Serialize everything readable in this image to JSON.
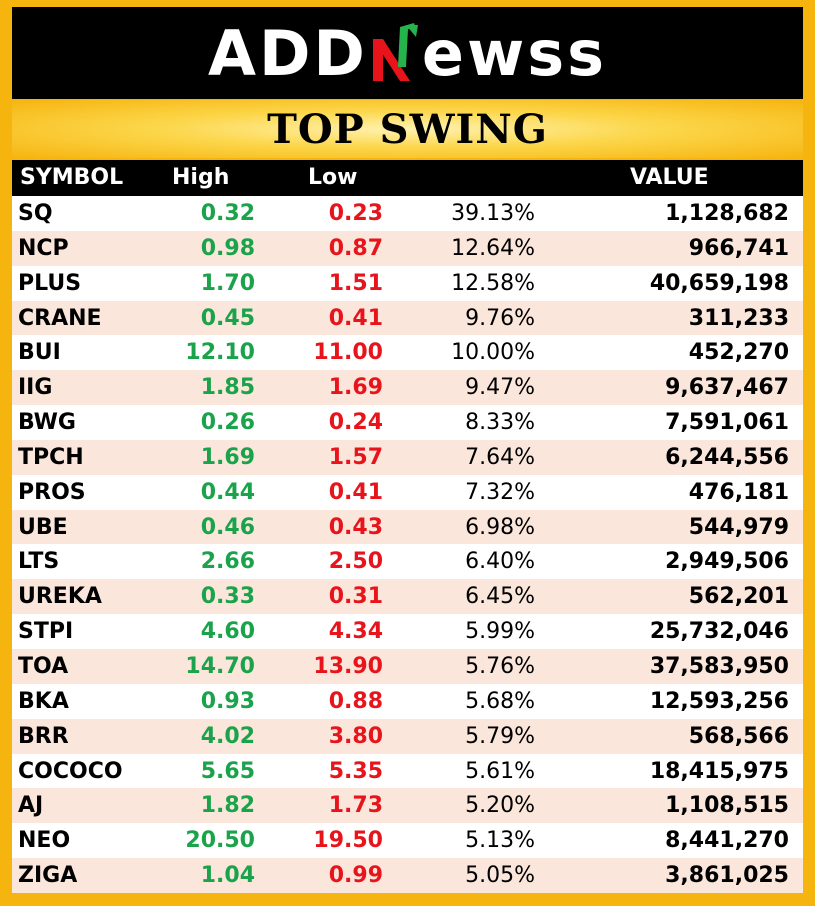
{
  "header": {
    "logo_left": "ADD",
    "logo_right": "ewss",
    "title": "TOP SWING"
  },
  "table": {
    "columns": {
      "symbol": "SYMBOL",
      "high": "High",
      "low": "Low",
      "pct": "",
      "value": "VALUE"
    },
    "rows": [
      {
        "symbol": "SQ",
        "high": "0.32",
        "low": "0.23",
        "pct": "39.13%",
        "value": "1,128,682"
      },
      {
        "symbol": "NCP",
        "high": "0.98",
        "low": "0.87",
        "pct": "12.64%",
        "value": "966,741"
      },
      {
        "symbol": "PLUS",
        "high": "1.70",
        "low": "1.51",
        "pct": "12.58%",
        "value": "40,659,198"
      },
      {
        "symbol": "CRANE",
        "high": "0.45",
        "low": "0.41",
        "pct": "9.76%",
        "value": "311,233"
      },
      {
        "symbol": "BUI",
        "high": "12.10",
        "low": "11.00",
        "pct": "10.00%",
        "value": "452,270"
      },
      {
        "symbol": "IIG",
        "high": "1.85",
        "low": "1.69",
        "pct": "9.47%",
        "value": "9,637,467"
      },
      {
        "symbol": "BWG",
        "high": "0.26",
        "low": "0.24",
        "pct": "8.33%",
        "value": "7,591,061"
      },
      {
        "symbol": "TPCH",
        "high": "1.69",
        "low": "1.57",
        "pct": "7.64%",
        "value": "6,244,556"
      },
      {
        "symbol": "PROS",
        "high": "0.44",
        "low": "0.41",
        "pct": "7.32%",
        "value": "476,181"
      },
      {
        "symbol": "UBE",
        "high": "0.46",
        "low": "0.43",
        "pct": "6.98%",
        "value": "544,979"
      },
      {
        "symbol": "LTS",
        "high": "2.66",
        "low": "2.50",
        "pct": "6.40%",
        "value": "2,949,506"
      },
      {
        "symbol": "UREKA",
        "high": "0.33",
        "low": "0.31",
        "pct": "6.45%",
        "value": "562,201"
      },
      {
        "symbol": "STPI",
        "high": "4.60",
        "low": "4.34",
        "pct": "5.99%",
        "value": "25,732,046"
      },
      {
        "symbol": "TOA",
        "high": "14.70",
        "low": "13.90",
        "pct": "5.76%",
        "value": "37,583,950"
      },
      {
        "symbol": "BKA",
        "high": "0.93",
        "low": "0.88",
        "pct": "5.68%",
        "value": "12,593,256"
      },
      {
        "symbol": "BRR",
        "high": "4.02",
        "low": "3.80",
        "pct": "5.79%",
        "value": "568,566"
      },
      {
        "symbol": "COCOCO",
        "high": "5.65",
        "low": "5.35",
        "pct": "5.61%",
        "value": "18,415,975"
      },
      {
        "symbol": "AJ",
        "high": "1.82",
        "low": "1.73",
        "pct": "5.20%",
        "value": "1,108,515"
      },
      {
        "symbol": "NEO",
        "high": "20.50",
        "low": "19.50",
        "pct": "5.13%",
        "value": "8,441,270"
      },
      {
        "symbol": "ZIGA",
        "high": "1.04",
        "low": "0.99",
        "pct": "5.05%",
        "value": "3,861,025"
      }
    ]
  },
  "colors": {
    "frame": "#f6b40f",
    "high": "#1aa34a",
    "low": "#e8141b",
    "row_alt": "#fbe6dc",
    "logo_n_green": "#27b34b",
    "logo_n_red": "#e8141b"
  },
  "icons": {
    "logo_mark": "n-arrow-icon"
  }
}
